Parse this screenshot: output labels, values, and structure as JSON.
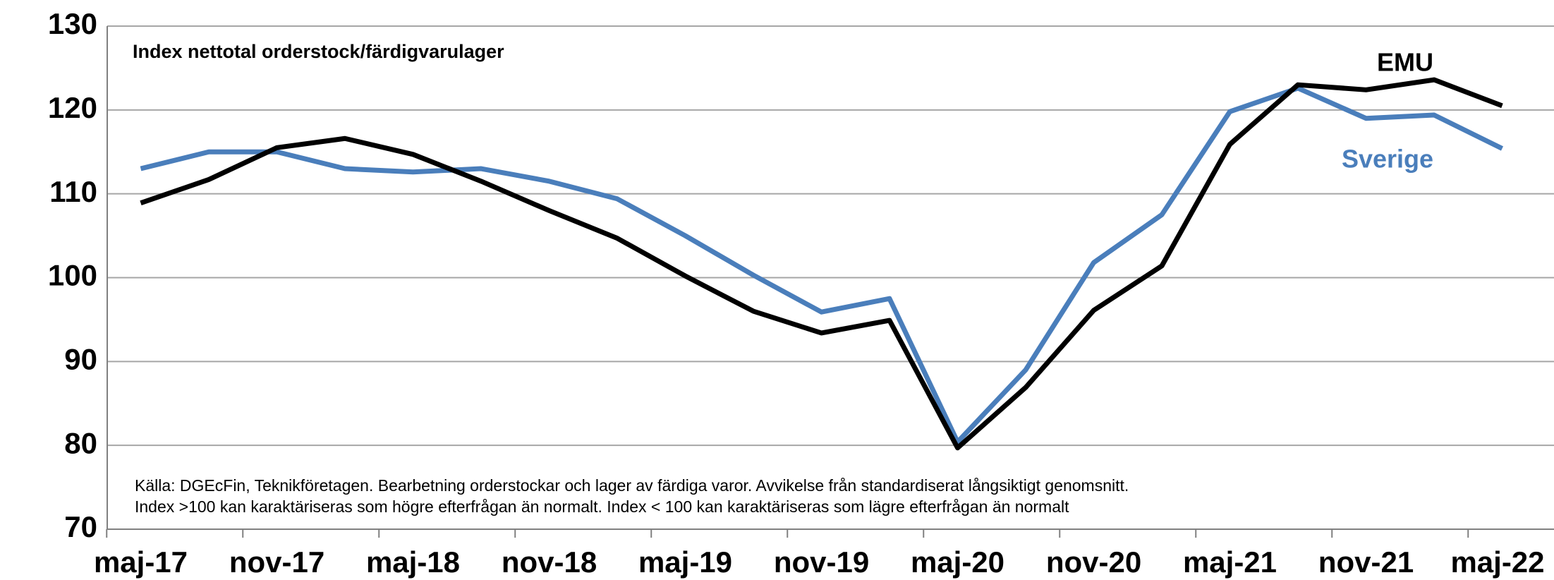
{
  "chart_data": {
    "type": "line",
    "subtitle": "Index nettotal orderstock/färdigvarulager",
    "note": [
      "Källa: DGEcFin, Teknikföretagen. Bearbetning orderstockar  och  lager av färdiga varor. Avvikelse från standardiserat långsiktigt genomsnitt.",
      "Index >100 kan karaktäriseras som högre efterfrågan än normalt. Index < 100 kan karaktäriseras som lägre efterfrågan än normalt"
    ],
    "categories": [
      "maj-17",
      null,
      "nov-17",
      null,
      "maj-18",
      null,
      "nov-18",
      null,
      "maj-19",
      null,
      "nov-19",
      null,
      "maj-20",
      null,
      "nov-20",
      null,
      "maj-21",
      null,
      "nov-21",
      null,
      "maj-22"
    ],
    "series": [
      {
        "name": "Sverige",
        "color": "#4a7ebb",
        "values": [
          113,
          115,
          115,
          113,
          112.6,
          113,
          111.5,
          109.4,
          105,
          100.3,
          95.9,
          97.5,
          80.4,
          89,
          101.8,
          107.5,
          119.8,
          122.6,
          119,
          119.4,
          115.4
        ]
      },
      {
        "name": "EMU",
        "color": "#000000",
        "values": [
          108.9,
          111.7,
          115.5,
          116.6,
          114.7,
          111.5,
          108,
          104.7,
          100.2,
          96,
          93.4,
          94.9,
          79.7,
          86.9,
          96.1,
          101.4,
          115.9,
          123,
          122.4,
          123.6,
          120.5
        ]
      }
    ],
    "ylim": [
      70,
      130
    ],
    "yticks": [
      70,
      80,
      90,
      100,
      110,
      120,
      130
    ],
    "grid": true
  }
}
